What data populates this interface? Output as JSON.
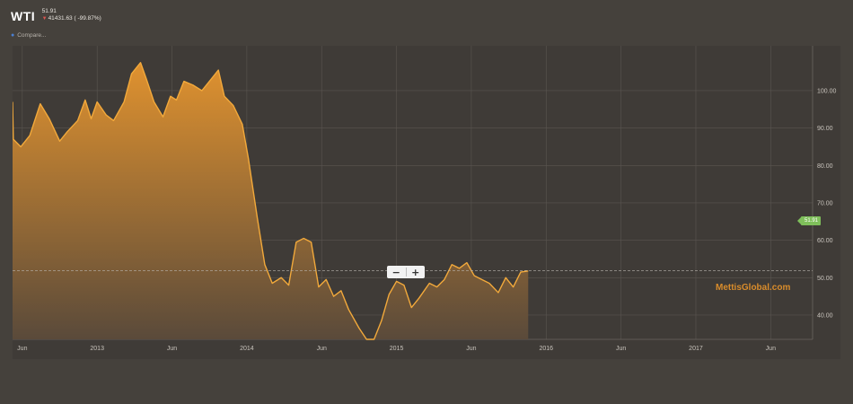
{
  "header": {
    "ticker": "WTI",
    "price": "51.91",
    "change_arrow": "▼",
    "change": "41431.63 ( -99.87%)",
    "compare_label": "Compare..."
  },
  "watermark": "MettisGlobal.com",
  "last_value_badge": "51.91",
  "zoom": {
    "out_label": "−",
    "in_label": "+"
  },
  "colors": {
    "background": "#45413c",
    "panel": "#3f3b37",
    "line": "#f2a93b",
    "fill_top": "#e0922f",
    "fill_bottom": "#5a4a3a",
    "badge": "#7fbf5b",
    "watermark": "#d98c2b"
  },
  "chart_data": {
    "type": "area",
    "y_ticks": [
      "40.00",
      "50.00",
      "60.00",
      "70.00",
      "80.00",
      "90.00",
      "100.00"
    ],
    "x_ticks": [
      {
        "label": "Jun",
        "t": 0.5
      },
      {
        "label": "2013",
        "t": 1
      },
      {
        "label": "Jun",
        "t": 1.5
      },
      {
        "label": "2014",
        "t": 2
      },
      {
        "label": "Jun",
        "t": 2.5
      },
      {
        "label": "2015",
        "t": 3
      },
      {
        "label": "Jun",
        "t": 3.5
      },
      {
        "label": "2016",
        "t": 4
      },
      {
        "label": "Jun",
        "t": 4.5
      },
      {
        "label": "2017",
        "t": 5
      },
      {
        "label": "Jun",
        "t": 5.5
      }
    ],
    "x_range": [
      0.435,
      5.78
    ],
    "y_range": [
      33.5,
      112
    ],
    "last_value": 51.91,
    "points": [
      [
        0.435,
        97
      ],
      [
        0.44,
        87
      ],
      [
        0.49,
        85
      ],
      [
        0.55,
        88
      ],
      [
        0.62,
        96.5
      ],
      [
        0.68,
        92.5
      ],
      [
        0.75,
        86.5
      ],
      [
        0.8,
        89
      ],
      [
        0.87,
        92
      ],
      [
        0.92,
        97.5
      ],
      [
        0.96,
        92.5
      ],
      [
        1.0,
        97
      ],
      [
        1.06,
        93.5
      ],
      [
        1.11,
        92
      ],
      [
        1.18,
        97
      ],
      [
        1.23,
        104.5
      ],
      [
        1.29,
        107.5
      ],
      [
        1.33,
        103
      ],
      [
        1.38,
        97
      ],
      [
        1.44,
        93
      ],
      [
        1.49,
        98.5
      ],
      [
        1.53,
        97.5
      ],
      [
        1.58,
        102.5
      ],
      [
        1.64,
        101.5
      ],
      [
        1.7,
        100
      ],
      [
        1.77,
        103.5
      ],
      [
        1.81,
        105.5
      ],
      [
        1.85,
        98.5
      ],
      [
        1.91,
        96
      ],
      [
        1.97,
        91
      ],
      [
        2.01,
        82
      ],
      [
        2.07,
        66
      ],
      [
        2.12,
        53.5
      ],
      [
        2.17,
        48.5
      ],
      [
        2.23,
        50
      ],
      [
        2.28,
        48
      ],
      [
        2.33,
        59.5
      ],
      [
        2.38,
        60.5
      ],
      [
        2.43,
        59.5
      ],
      [
        2.48,
        47.5
      ],
      [
        2.53,
        49.5
      ],
      [
        2.58,
        45
      ],
      [
        2.63,
        46.5
      ],
      [
        2.68,
        41.5
      ],
      [
        2.75,
        36.5
      ],
      [
        2.8,
        33.5
      ],
      [
        2.85,
        33.5
      ],
      [
        2.9,
        38.5
      ],
      [
        2.95,
        45.5
      ],
      [
        3.0,
        49
      ],
      [
        3.05,
        48
      ],
      [
        3.1,
        42
      ],
      [
        3.15,
        44.5
      ],
      [
        3.22,
        48.5
      ],
      [
        3.27,
        47.5
      ],
      [
        3.32,
        49.5
      ],
      [
        3.37,
        53.5
      ],
      [
        3.42,
        52.5
      ],
      [
        3.47,
        54
      ],
      [
        3.52,
        50.5
      ],
      [
        3.57,
        49.5
      ],
      [
        3.62,
        48.5
      ],
      [
        3.68,
        46
      ],
      [
        3.73,
        50
      ],
      [
        3.78,
        47.5
      ],
      [
        3.83,
        51.5
      ],
      [
        3.88,
        51.8
      ]
    ]
  }
}
